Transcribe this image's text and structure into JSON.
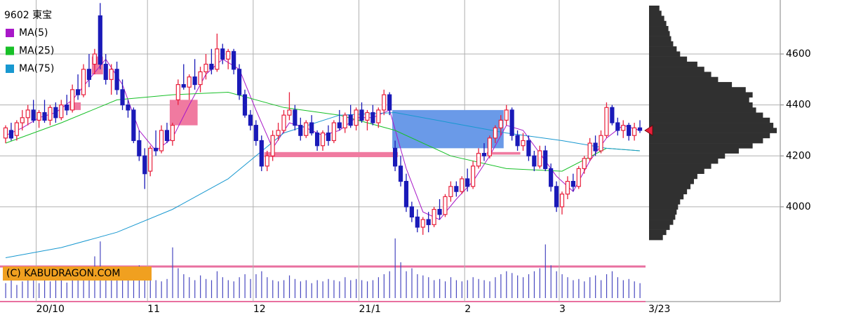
{
  "chart_data": {
    "type": "candlestick",
    "title": "9602 東宝",
    "copyright": "(C) KABUDRAGON.COM",
    "ylim": [
      3628,
      4812
    ],
    "yticks": [
      4000,
      4200,
      4400,
      4600
    ],
    "xticks": [
      {
        "value": 6,
        "label": "20/10"
      },
      {
        "value": 26,
        "label": "11"
      },
      {
        "value": 45,
        "label": "12"
      },
      {
        "value": 64,
        "label": "21/1"
      },
      {
        "value": 83,
        "label": "2"
      },
      {
        "value": 100,
        "label": "3"
      },
      {
        "value": 114,
        "label": "3/23"
      }
    ],
    "up_color": "#e8203c",
    "down_color": "#1a1ab8",
    "ohlc": [
      [
        4270,
        4320,
        4250,
        4310
      ],
      [
        4300,
        4330,
        4260,
        4270
      ],
      [
        4280,
        4340,
        4260,
        4330
      ],
      [
        4330,
        4380,
        4300,
        4350
      ],
      [
        4350,
        4400,
        4320,
        4380
      ],
      [
        4380,
        4420,
        4330,
        4340
      ],
      [
        4340,
        4380,
        4310,
        4370
      ],
      [
        4370,
        4420,
        4330,
        4340
      ],
      [
        4340,
        4400,
        4320,
        4390
      ],
      [
        4390,
        4410,
        4330,
        4350
      ],
      [
        4350,
        4420,
        4340,
        4400
      ],
      [
        4400,
        4440,
        4360,
        4380
      ],
      [
        4380,
        4480,
        4370,
        4460
      ],
      [
        4460,
        4520,
        4420,
        4440
      ],
      [
        4440,
        4560,
        4430,
        4540
      ],
      [
        4540,
        4600,
        4470,
        4500
      ],
      [
        4560,
        4620,
        4520,
        4600
      ],
      [
        4750,
        4800,
        4540,
        4560
      ],
      [
        4560,
        4600,
        4480,
        4500
      ],
      [
        4500,
        4560,
        4440,
        4540
      ],
      [
        4540,
        4570,
        4440,
        4460
      ],
      [
        4460,
        4500,
        4380,
        4400
      ],
      [
        4400,
        4420,
        4350,
        4380
      ],
      [
        4380,
        4390,
        4250,
        4260
      ],
      [
        4260,
        4300,
        4180,
        4200
      ],
      [
        4200,
        4230,
        4070,
        4130
      ],
      [
        4140,
        4240,
        4120,
        4230
      ],
      [
        4230,
        4300,
        4200,
        4220
      ],
      [
        4220,
        4320,
        4210,
        4300
      ],
      [
        4300,
        4330,
        4250,
        4260
      ],
      [
        4260,
        4330,
        4240,
        4320
      ],
      [
        4420,
        4500,
        4400,
        4480
      ],
      [
        4480,
        4560,
        4460,
        4470
      ],
      [
        4470,
        4520,
        4420,
        4510
      ],
      [
        4510,
        4580,
        4460,
        4480
      ],
      [
        4480,
        4550,
        4450,
        4530
      ],
      [
        4530,
        4600,
        4500,
        4560
      ],
      [
        4560,
        4620,
        4520,
        4540
      ],
      [
        4540,
        4680,
        4530,
        4620
      ],
      [
        4620,
        4640,
        4560,
        4580
      ],
      [
        4580,
        4620,
        4540,
        4610
      ],
      [
        4610,
        4620,
        4520,
        4540
      ],
      [
        4540,
        4560,
        4420,
        4440
      ],
      [
        4440,
        4460,
        4350,
        4360
      ],
      [
        4360,
        4380,
        4300,
        4320
      ],
      [
        4320,
        4340,
        4240,
        4260
      ],
      [
        4260,
        4280,
        4140,
        4160
      ],
      [
        4160,
        4220,
        4140,
        4200
      ],
      [
        4200,
        4300,
        4180,
        4280
      ],
      [
        4280,
        4330,
        4260,
        4300
      ],
      [
        4300,
        4380,
        4290,
        4360
      ],
      [
        4360,
        4450,
        4340,
        4380
      ],
      [
        4380,
        4400,
        4300,
        4320
      ],
      [
        4320,
        4350,
        4260,
        4280
      ],
      [
        4280,
        4340,
        4270,
        4330
      ],
      [
        4330,
        4360,
        4280,
        4290
      ],
      [
        4290,
        4300,
        4220,
        4240
      ],
      [
        4240,
        4300,
        4220,
        4290
      ],
      [
        4290,
        4320,
        4240,
        4260
      ],
      [
        4260,
        4340,
        4250,
        4330
      ],
      [
        4330,
        4380,
        4300,
        4310
      ],
      [
        4310,
        4370,
        4290,
        4360
      ],
      [
        4360,
        4400,
        4310,
        4320
      ],
      [
        4320,
        4390,
        4300,
        4380
      ],
      [
        4380,
        4410,
        4330,
        4340
      ],
      [
        4340,
        4380,
        4300,
        4370
      ],
      [
        4370,
        4400,
        4320,
        4330
      ],
      [
        4330,
        4390,
        4310,
        4380
      ],
      [
        4380,
        4460,
        4360,
        4440
      ],
      [
        4440,
        4450,
        4360,
        4380
      ],
      [
        4230,
        4260,
        4140,
        4160
      ],
      [
        4160,
        4200,
        4080,
        4100
      ],
      [
        4100,
        4130,
        3980,
        4000
      ],
      [
        4000,
        4020,
        3940,
        3960
      ],
      [
        3960,
        3990,
        3900,
        3920
      ],
      [
        3920,
        3960,
        3890,
        3950
      ],
      [
        3950,
        3980,
        3900,
        3930
      ],
      [
        3930,
        4000,
        3920,
        3990
      ],
      [
        3990,
        4030,
        3950,
        3970
      ],
      [
        3970,
        4050,
        3960,
        4040
      ],
      [
        4040,
        4100,
        4020,
        4080
      ],
      [
        4080,
        4100,
        4040,
        4060
      ],
      [
        4060,
        4120,
        4050,
        4110
      ],
      [
        4110,
        4150,
        4060,
        4080
      ],
      [
        4080,
        4180,
        4070,
        4160
      ],
      [
        4160,
        4230,
        4150,
        4210
      ],
      [
        4210,
        4250,
        4180,
        4200
      ],
      [
        4200,
        4280,
        4190,
        4270
      ],
      [
        4270,
        4320,
        4250,
        4310
      ],
      [
        4310,
        4360,
        4280,
        4340
      ],
      [
        4340,
        4400,
        4320,
        4380
      ],
      [
        4380,
        4390,
        4260,
        4280
      ],
      [
        4280,
        4300,
        4220,
        4240
      ],
      [
        4240,
        4290,
        4220,
        4260
      ],
      [
        4260,
        4280,
        4180,
        4200
      ],
      [
        4200,
        4220,
        4140,
        4160
      ],
      [
        4160,
        4240,
        4150,
        4220
      ],
      [
        4220,
        4240,
        4140,
        4150
      ],
      [
        4150,
        4170,
        4060,
        4080
      ],
      [
        4080,
        4100,
        3980,
        4000
      ],
      [
        4000,
        4060,
        3970,
        4050
      ],
      [
        4050,
        4120,
        4030,
        4100
      ],
      [
        4100,
        4130,
        4060,
        4080
      ],
      [
        4080,
        4160,
        4070,
        4150
      ],
      [
        4150,
        4200,
        4130,
        4190
      ],
      [
        4190,
        4270,
        4180,
        4250
      ],
      [
        4250,
        4280,
        4200,
        4220
      ],
      [
        4220,
        4300,
        4210,
        4280
      ],
      [
        4280,
        4410,
        4270,
        4390
      ],
      [
        4390,
        4400,
        4320,
        4330
      ],
      [
        4330,
        4350,
        4280,
        4300
      ],
      [
        4300,
        4340,
        4270,
        4320
      ],
      [
        4320,
        4330,
        4260,
        4280
      ],
      [
        4280,
        4330,
        4260,
        4310
      ],
      [
        4310,
        4340,
        4290,
        4300
      ]
    ],
    "series": [
      {
        "name": "MA(5)",
        "color": "#a818c8",
        "x": [
          0,
          3,
          6,
          9,
          12,
          15,
          18,
          21,
          24,
          27,
          30,
          33,
          36,
          39,
          42,
          45,
          48,
          51,
          54,
          57,
          60,
          63,
          66,
          69,
          72,
          75,
          78,
          81,
          84,
          87,
          90,
          93,
          96,
          99,
          102,
          105,
          108,
          111,
          114
        ],
        "values": [
          4280,
          4310,
          4350,
          4370,
          4420,
          4500,
          4580,
          4480,
          4300,
          4220,
          4270,
          4400,
          4520,
          4580,
          4540,
          4380,
          4230,
          4330,
          4310,
          4280,
          4300,
          4350,
          4350,
          4380,
          4150,
          3980,
          3950,
          4030,
          4100,
          4200,
          4320,
          4300,
          4210,
          4120,
          4060,
          4180,
          4270,
          4320,
          4300
        ]
      },
      {
        "name": "MA(25)",
        "color": "#18c028",
        "x": [
          0,
          10,
          20,
          30,
          40,
          50,
          60,
          70,
          80,
          90,
          100,
          108,
          114
        ],
        "values": [
          4250,
          4330,
          4420,
          4440,
          4450,
          4390,
          4360,
          4300,
          4200,
          4150,
          4140,
          4230,
          4220
        ]
      },
      {
        "name": "MA(75)",
        "color": "#1898d0",
        "x": [
          0,
          10,
          20,
          30,
          40,
          45,
          50,
          60,
          70,
          80,
          90,
          100,
          108,
          114
        ],
        "values": [
          3800,
          3840,
          3900,
          3990,
          4110,
          4200,
          4290,
          4360,
          4370,
          4330,
          4290,
          4260,
          4230,
          4220
        ]
      }
    ],
    "zones": [
      {
        "from": 12,
        "to": 13,
        "low": 4380,
        "high": 4410,
        "color": "#f07aa0"
      },
      {
        "from": 16,
        "to": 17,
        "low": 4520,
        "high": 4590,
        "color": "#f07aa0"
      },
      {
        "from": 30,
        "to": 34,
        "low": 4320,
        "high": 4420,
        "color": "#f07aa0"
      },
      {
        "from": 47,
        "to": 70,
        "low": 4195,
        "high": 4215,
        "color": "#f07aa0"
      },
      {
        "from": 70,
        "to": 89,
        "low": 4230,
        "high": 4380,
        "color": "#6a9ae8"
      },
      {
        "from": 87,
        "to": 92,
        "low": 4205,
        "high": 4215,
        "color": "#f07aa0"
      }
    ],
    "volume_color": "#4848c0",
    "volume_lim": [
      0,
      100
    ],
    "volumes": [
      25,
      30,
      22,
      28,
      35,
      30,
      25,
      32,
      28,
      40,
      30,
      26,
      35,
      42,
      38,
      45,
      70,
      95,
      50,
      40,
      35,
      45,
      38,
      30,
      55,
      48,
      35,
      30,
      28,
      32,
      85,
      50,
      40,
      35,
      30,
      38,
      32,
      30,
      45,
      35,
      30,
      28,
      35,
      40,
      32,
      40,
      45,
      35,
      30,
      28,
      30,
      38,
      32,
      28,
      30,
      25,
      30,
      28,
      32,
      30,
      28,
      35,
      30,
      32,
      30,
      28,
      30,
      35,
      40,
      45,
      100,
      60,
      45,
      50,
      40,
      38,
      35,
      30,
      32,
      28,
      35,
      30,
      28,
      30,
      35,
      32,
      30,
      28,
      35,
      40,
      45,
      42,
      38,
      35,
      40,
      45,
      50,
      90,
      55,
      45,
      40,
      35,
      30,
      32,
      28,
      35,
      38,
      30,
      40,
      45,
      35,
      30,
      32,
      28,
      25
    ],
    "profile_color": "#303030",
    "profile_lim": [
      0,
      190
    ],
    "profile_prices": [
      3880,
      3900,
      3920,
      3940,
      3960,
      3980,
      4000,
      4020,
      4040,
      4060,
      4080,
      4100,
      4120,
      4140,
      4160,
      4180,
      4200,
      4220,
      4240,
      4260,
      4280,
      4300,
      4320,
      4340,
      4360,
      4380,
      4400,
      4420,
      4440,
      4460,
      4480,
      4500,
      4520,
      4540,
      4560,
      4580,
      4600,
      4620,
      4640,
      4660,
      4680,
      4700,
      4720,
      4740,
      4760,
      4780
    ],
    "profile_volumes": [
      20,
      25,
      30,
      35,
      38,
      40,
      42,
      45,
      50,
      55,
      60,
      65,
      70,
      80,
      90,
      100,
      110,
      130,
      150,
      165,
      175,
      185,
      180,
      175,
      165,
      155,
      150,
      145,
      150,
      140,
      120,
      100,
      90,
      80,
      70,
      55,
      45,
      40,
      35,
      32,
      30,
      28,
      25,
      22,
      18,
      15
    ]
  }
}
